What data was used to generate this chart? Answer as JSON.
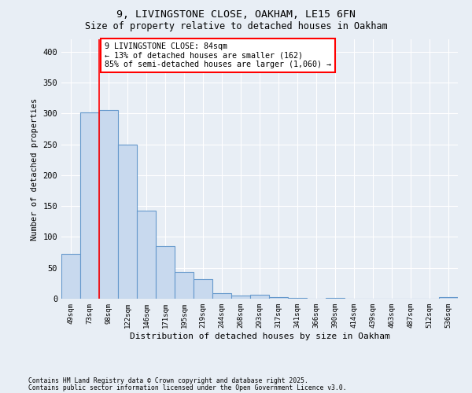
{
  "title_line1": "9, LIVINGSTONE CLOSE, OAKHAM, LE15 6FN",
  "title_line2": "Size of property relative to detached houses in Oakham",
  "xlabel": "Distribution of detached houses by size in Oakham",
  "ylabel": "Number of detached properties",
  "footnote1": "Contains HM Land Registry data © Crown copyright and database right 2025.",
  "footnote2": "Contains public sector information licensed under the Open Government Licence v3.0.",
  "bin_labels": [
    "49sqm",
    "73sqm",
    "98sqm",
    "122sqm",
    "146sqm",
    "171sqm",
    "195sqm",
    "219sqm",
    "244sqm",
    "268sqm",
    "293sqm",
    "317sqm",
    "341sqm",
    "366sqm",
    "390sqm",
    "414sqm",
    "439sqm",
    "463sqm",
    "487sqm",
    "512sqm",
    "536sqm"
  ],
  "bar_values": [
    72,
    302,
    305,
    250,
    143,
    85,
    43,
    32,
    9,
    5,
    6,
    3,
    1,
    0,
    1,
    0,
    0,
    0,
    0,
    0,
    2
  ],
  "bar_color": "#c8d9ee",
  "bar_edge_color": "#6699cc",
  "vline_x_idx": 1.5,
  "vline_color": "red",
  "annotation_text": "9 LIVINGSTONE CLOSE: 84sqm\n← 13% of detached houses are smaller (162)\n85% of semi-detached houses are larger (1,060) →",
  "annotation_box_color": "white",
  "annotation_box_edge": "red",
  "background_color": "#e8eef5",
  "plot_bg_color": "#e8eef5",
  "grid_color": "#ffffff",
  "ylim": [
    0,
    420
  ],
  "yticks": [
    0,
    50,
    100,
    150,
    200,
    250,
    300,
    350,
    400
  ]
}
